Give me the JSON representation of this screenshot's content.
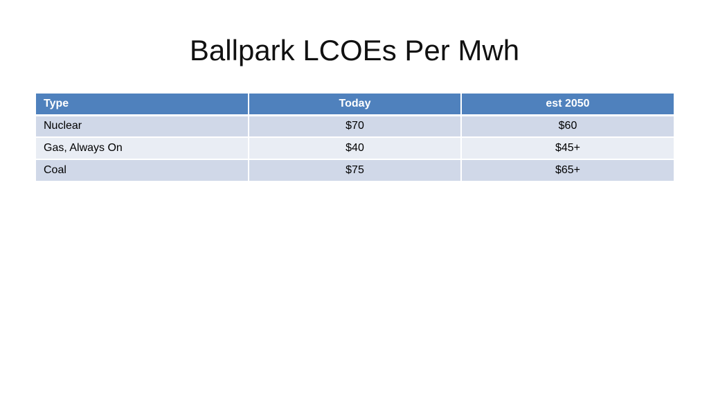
{
  "title": "Ballpark LCOEs Per Mwh",
  "table": {
    "headers": [
      "Type",
      "Today",
      "est 2050"
    ],
    "rows": [
      [
        "Nuclear",
        "$70",
        "$60"
      ],
      [
        "Gas, Always On",
        "$40",
        "$45+"
      ],
      [
        "Coal",
        "$75",
        "$65+"
      ]
    ]
  },
  "colors": {
    "header_bg": "#4f81bd",
    "row_odd_bg": "#d0d8e8",
    "row_even_bg": "#e9edf4"
  }
}
